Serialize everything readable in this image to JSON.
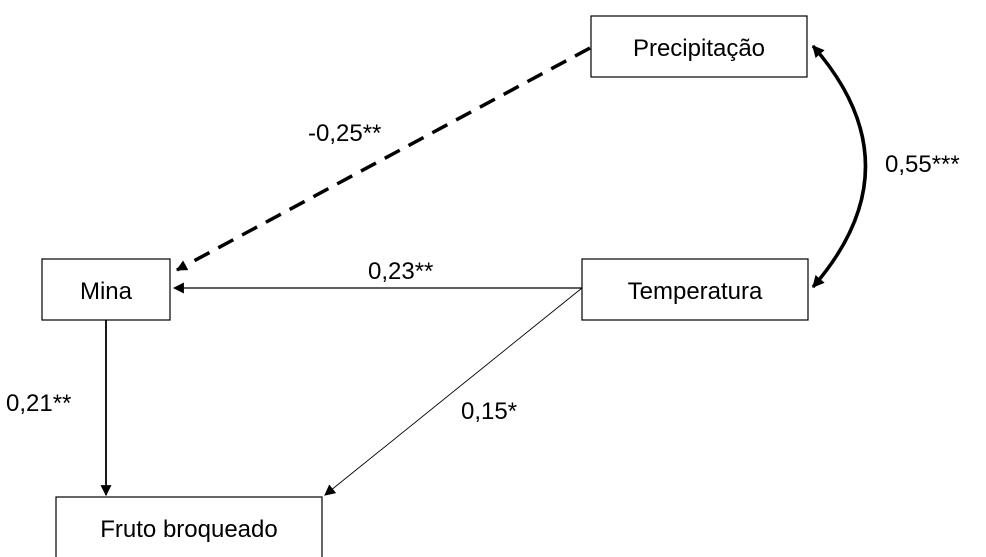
{
  "nodes": {
    "precipitacao": "Precipitação",
    "mina": "Mina",
    "temperatura": "Temperatura",
    "fruto": "Fruto broqueado"
  },
  "edges": {
    "precip_mina": "-0,25**",
    "precip_temp": "0,55***",
    "temp_mina": "0,23**",
    "temp_fruto": "0,15*",
    "mina_fruto": "0,21**"
  },
  "colors": {
    "stroke": "#000000",
    "background": "#ffffff"
  }
}
